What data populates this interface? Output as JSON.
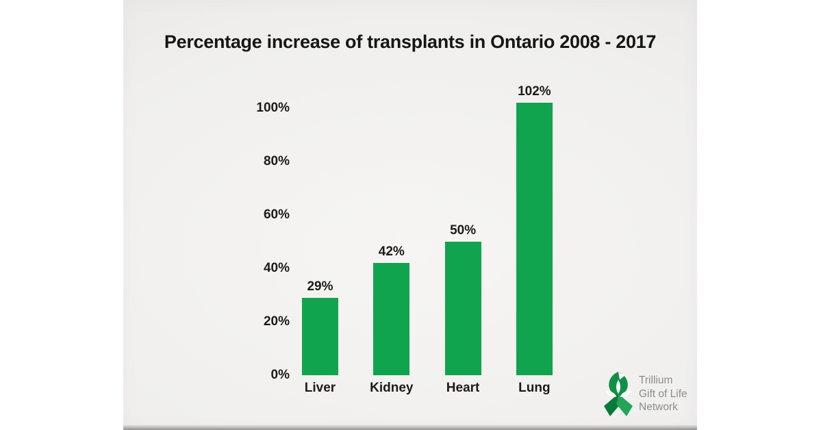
{
  "chart_data": {
    "type": "bar",
    "title": "Percentage increase of transplants in Ontario 2008 - 2017",
    "categories": [
      "Liver",
      "Kidney",
      "Heart",
      "Lung"
    ],
    "values": [
      29,
      42,
      50,
      102
    ],
    "value_labels": [
      "29%",
      "42%",
      "50%",
      "102%"
    ],
    "y_ticks": [
      "100%",
      "80%",
      "60%",
      "40%",
      "20%",
      "0%"
    ],
    "y_tick_values": [
      100,
      80,
      60,
      40,
      20,
      0
    ],
    "xlabel": "",
    "ylabel": "",
    "ylim": [
      0,
      105
    ],
    "grid": false,
    "legend": false,
    "bar_color": "#10a44e",
    "label_color": "#1b1b1b",
    "background_color": "#f0efed"
  },
  "logo": {
    "name": "Trillium Gift of Life Network",
    "lines": [
      "Trillium",
      "Gift of Life",
      "Network"
    ],
    "text_color": "#8c8c8c",
    "ribbon_color": "#0e9147",
    "ribbon_color_light": "#23a457",
    "ribbon_color_dark": "#077a3b",
    "flower_color": "#fdfdfc"
  }
}
